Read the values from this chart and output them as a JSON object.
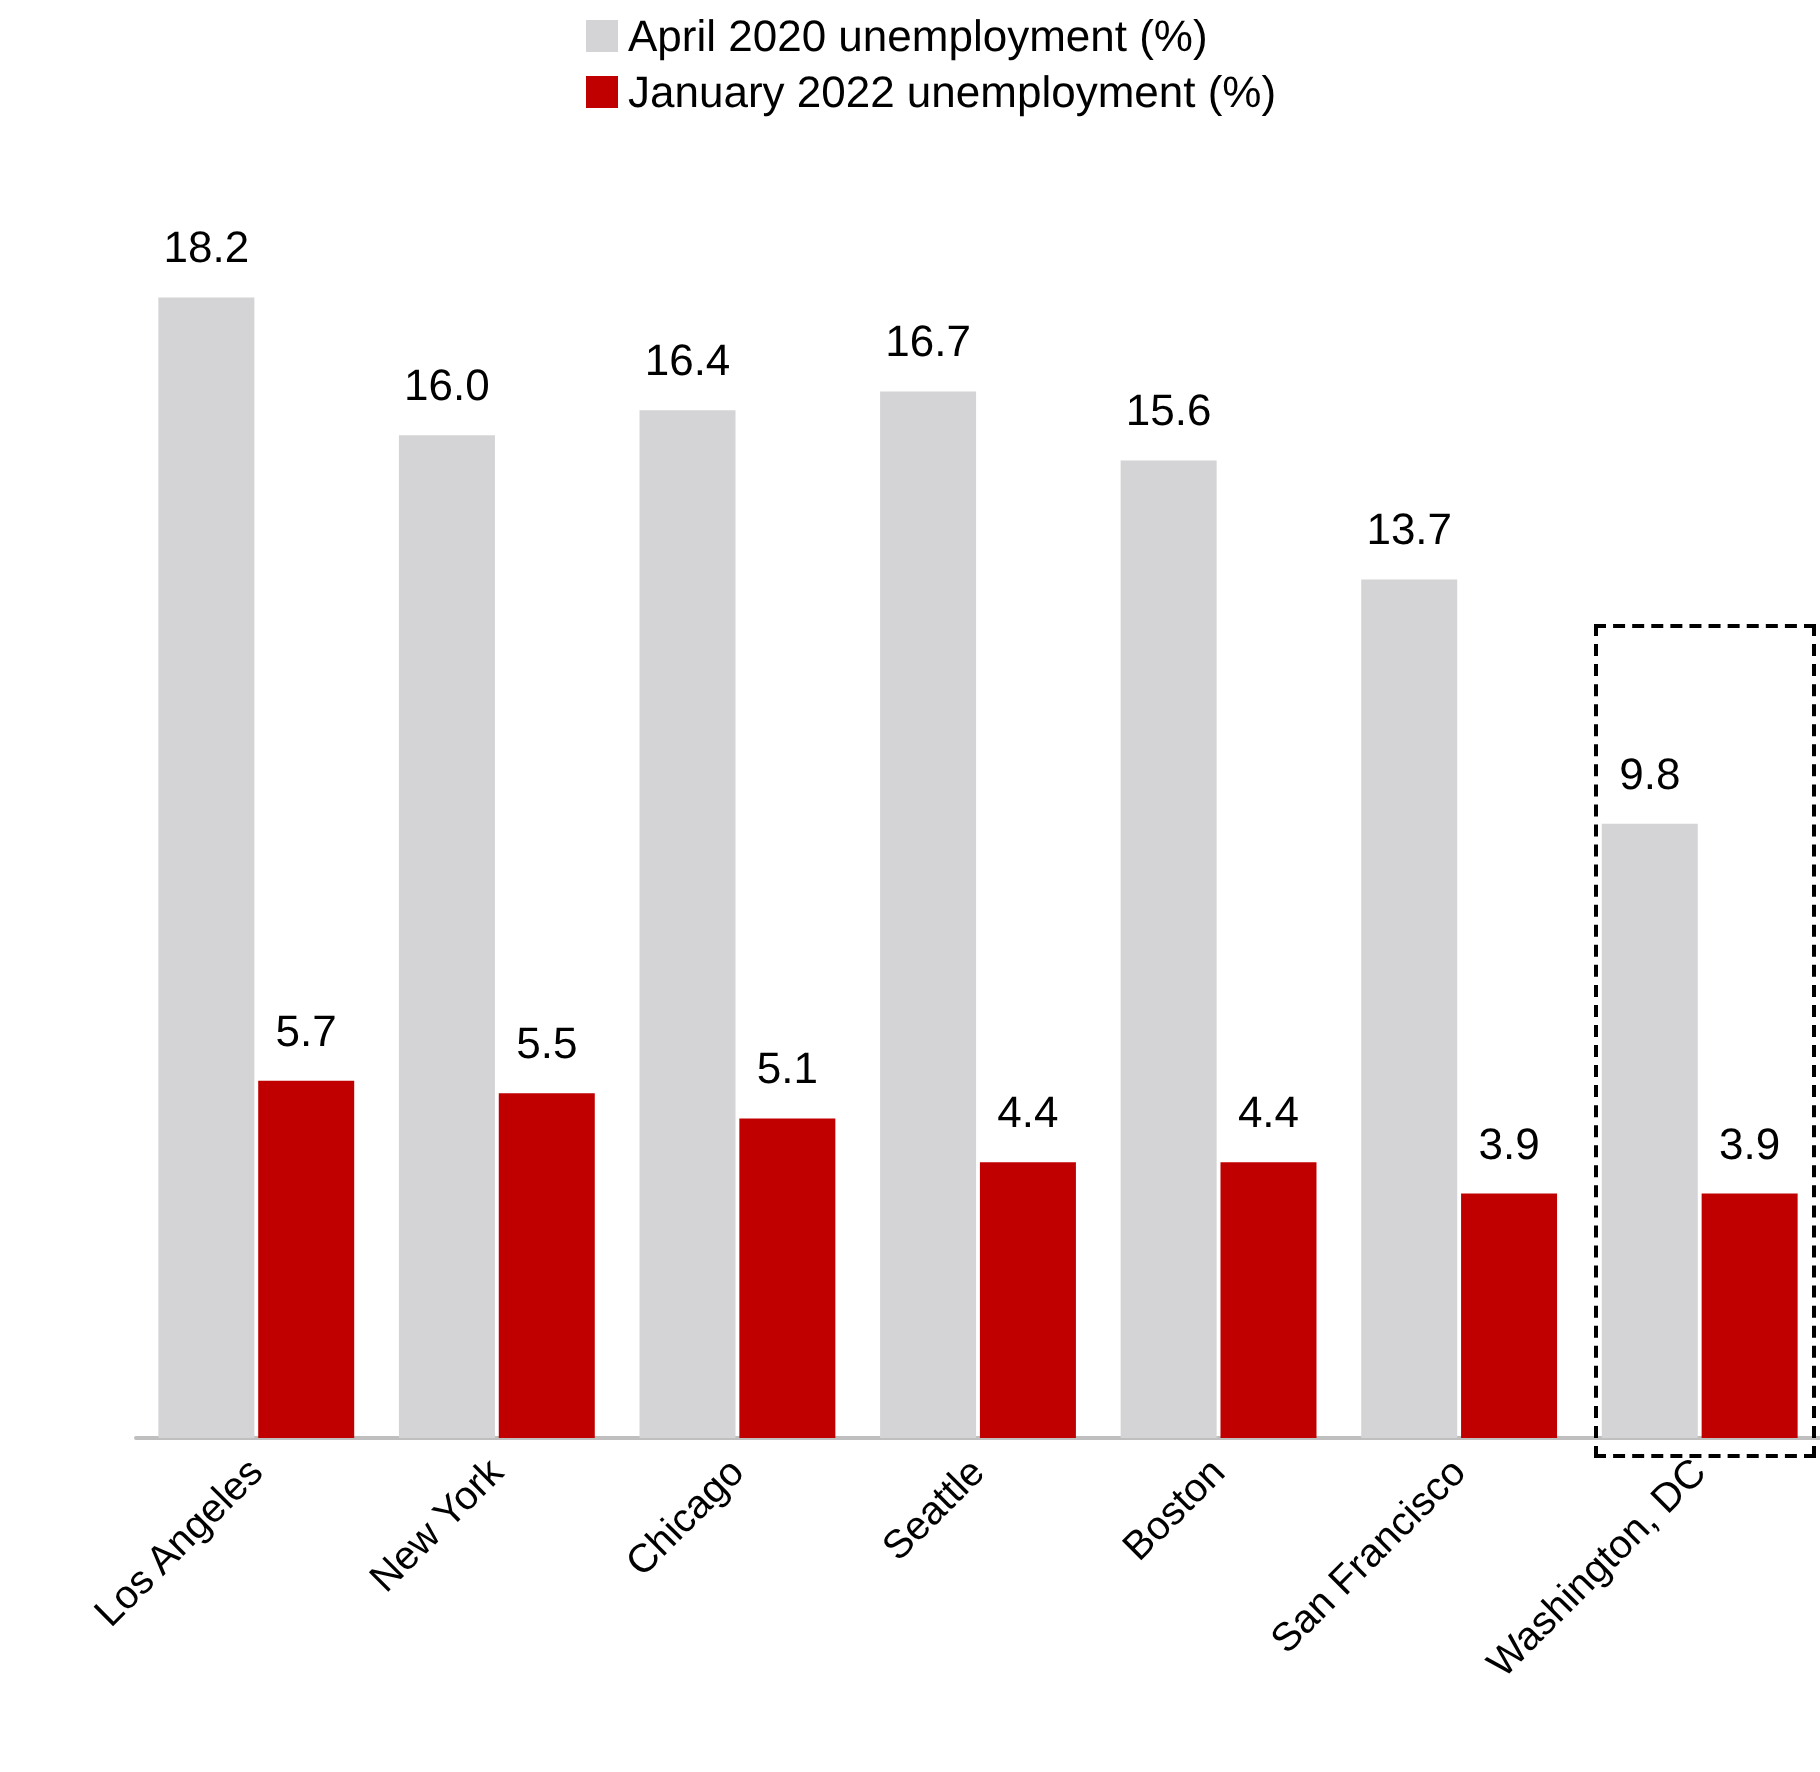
{
  "chart_data": {
    "type": "bar",
    "categories": [
      "Los Angeles",
      "New York",
      "Chicago",
      "Seattle",
      "Boston",
      "San Francisco",
      "Washington, DC"
    ],
    "series": [
      {
        "name": "April 2020 unemployment (%)",
        "color": "#d4d4d6",
        "values": [
          18.2,
          16.0,
          16.4,
          16.7,
          15.6,
          13.7,
          9.8
        ],
        "value_labels": [
          "18.2",
          "16.0",
          "16.4",
          "16.7",
          "15.6",
          "13.7",
          "9.8"
        ]
      },
      {
        "name": "January 2022 unemployment (%)",
        "color": "#c00000",
        "values": [
          5.7,
          5.5,
          5.1,
          4.4,
          4.4,
          3.9,
          3.9
        ],
        "value_labels": [
          "5.7",
          "5.5",
          "5.1",
          "4.4",
          "4.4",
          "3.9",
          "3.9"
        ]
      }
    ],
    "tick_labels": "x",
    "legend": "top"
  }
}
